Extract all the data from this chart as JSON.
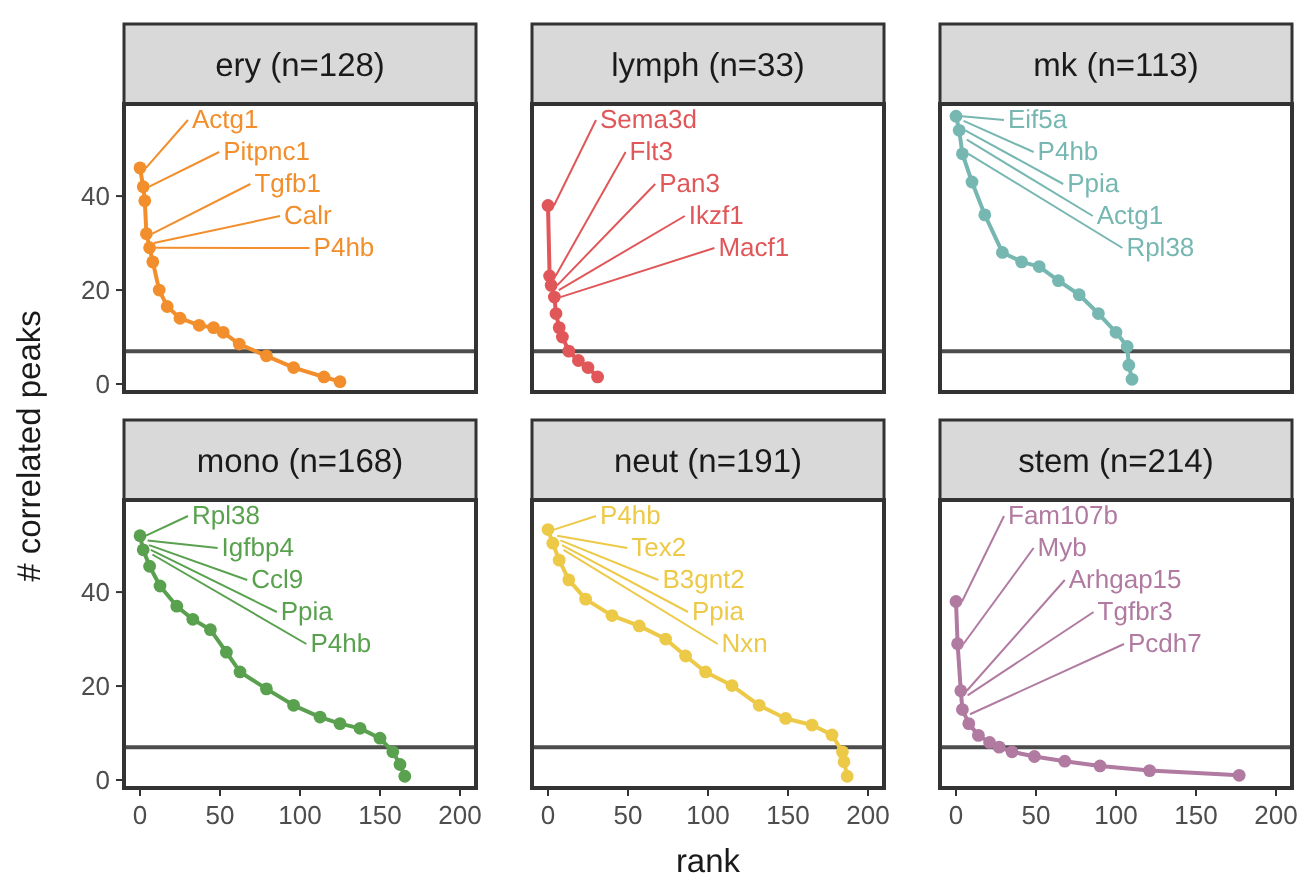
{
  "chart_data": [
    {
      "type": "line",
      "title": "ery (n=128)",
      "marker": "circle",
      "tick_labels": "y",
      "ylabel": "# correlated peaks",
      "xlim": [
        -10,
        210
      ],
      "ylim": [
        -1.7,
        59.6
      ],
      "yticks": [
        0,
        20,
        40
      ],
      "ref_lines": [
        {
          "axis": "y",
          "value": 7,
          "color": "#4d4d4d"
        }
      ],
      "series": [
        {
          "color": "#f28e2b",
          "x": [
            0,
            2,
            3,
            4,
            6,
            8,
            12,
            17,
            25,
            37,
            46,
            52,
            62,
            79,
            96,
            115,
            125
          ],
          "values": [
            46,
            42,
            39,
            32,
            29,
            26,
            20,
            16.5,
            14,
            12.5,
            12,
            11,
            8.5,
            6,
            3.5,
            1.5,
            0.5
          ]
        }
      ],
      "annotations": [
        {
          "text": "Actg1",
          "x": 0,
          "y": 46
        },
        {
          "text": "Pitpnc1",
          "x": 2,
          "y": 42
        },
        {
          "text": "Tgfb1",
          "x": 4,
          "y": 32
        },
        {
          "text": "Calr",
          "x": 5,
          "y": 30
        },
        {
          "text": "P4hb",
          "x": 6,
          "y": 29
        }
      ]
    },
    {
      "type": "line",
      "title": "lymph (n=33)",
      "marker": "circle",
      "tick_labels": false,
      "xlim": [
        -10,
        210
      ],
      "ylim": [
        -1.7,
        59.6
      ],
      "ref_lines": [
        {
          "axis": "y",
          "value": 7,
          "color": "#4d4d4d"
        }
      ],
      "series": [
        {
          "color": "#e15759",
          "x": [
            0,
            1,
            2,
            4,
            5,
            7,
            9,
            13,
            19,
            25,
            31
          ],
          "values": [
            38,
            23,
            21,
            18.5,
            15,
            12,
            10,
            7,
            5,
            3.5,
            1.5
          ]
        }
      ],
      "annotations": [
        {
          "text": "Sema3d",
          "x": 0,
          "y": 38
        },
        {
          "text": "Flt3",
          "x": 1,
          "y": 23
        },
        {
          "text": "Pan3",
          "x": 2,
          "y": 21
        },
        {
          "text": "Ikzf1",
          "x": 3,
          "y": 20
        },
        {
          "text": "Macf1",
          "x": 4,
          "y": 18.5
        }
      ]
    },
    {
      "type": "line",
      "title": "mk (n=113)",
      "marker": "circle",
      "tick_labels": false,
      "xlim": [
        -10,
        210
      ],
      "ylim": [
        -1.7,
        59.6
      ],
      "ref_lines": [
        {
          "axis": "y",
          "value": 7,
          "color": "#4d4d4d"
        }
      ],
      "series": [
        {
          "color": "#76b7b2",
          "x": [
            0,
            2,
            4,
            10,
            18,
            29,
            41,
            52,
            64,
            77,
            89,
            100,
            107,
            108,
            110
          ],
          "values": [
            57,
            54,
            49,
            43,
            36,
            28,
            26,
            25,
            22,
            19,
            15,
            11,
            8,
            4,
            1
          ]
        }
      ],
      "annotations": [
        {
          "text": "Eif5a",
          "x": 0,
          "y": 57
        },
        {
          "text": "P4hb",
          "x": 1,
          "y": 56
        },
        {
          "text": "Ppia",
          "x": 2,
          "y": 54
        },
        {
          "text": "Actg1",
          "x": 3,
          "y": 52
        },
        {
          "text": "Rpl38",
          "x": 4,
          "y": 49
        }
      ]
    },
    {
      "type": "line",
      "title": "mono (n=168)",
      "marker": "circle",
      "xlim": [
        -10,
        210
      ],
      "xticks": [
        0,
        50,
        100,
        150,
        200
      ],
      "ylim": [
        -1.7,
        59.6
      ],
      "yticks": [
        0,
        20,
        40
      ],
      "ref_lines": [
        {
          "axis": "y",
          "value": 7,
          "color": "#4d4d4d"
        }
      ],
      "series": [
        {
          "color": "#59a14f",
          "x": [
            0,
            2,
            6,
            12.5,
            23,
            33,
            44,
            54,
            62.5,
            79,
            96,
            112.5,
            125,
            137.5,
            150,
            158,
            162.5,
            165.5
          ],
          "values": [
            52,
            49,
            45.5,
            41.3,
            37,
            34.2,
            32,
            27.2,
            23,
            19.4,
            15.9,
            13.4,
            12,
            11,
            8.9,
            6,
            3.3,
            0.8
          ]
        }
      ],
      "annotations": [
        {
          "text": "Rpl38",
          "x": 0,
          "y": 52
        },
        {
          "text": "Igfbp4",
          "x": 1,
          "y": 51
        },
        {
          "text": "Ccl9",
          "x": 2,
          "y": 50
        },
        {
          "text": "Ppia",
          "x": 3,
          "y": 49
        },
        {
          "text": "P4hb",
          "x": 4,
          "y": 48
        }
      ]
    },
    {
      "type": "line",
      "title": "neut (n=191)",
      "marker": "circle",
      "tick_labels": "x",
      "xlabel": "rank",
      "xlim": [
        -10,
        210
      ],
      "xticks": [
        0,
        50,
        100,
        150,
        200
      ],
      "ylim": [
        -1.7,
        59.6
      ],
      "ref_lines": [
        {
          "axis": "y",
          "value": 7,
          "color": "#4d4d4d"
        }
      ],
      "series": [
        {
          "color": "#edc948",
          "x": [
            0,
            3,
            7,
            13,
            23.5,
            40,
            57,
            73.5,
            86,
            98.5,
            115,
            132,
            148.5,
            165,
            177.5,
            184,
            185,
            187
          ],
          "values": [
            53.3,
            50.4,
            46.8,
            42.6,
            38.5,
            35,
            32.8,
            30,
            26.4,
            23,
            20.1,
            15.9,
            13.1,
            11.7,
            9.6,
            6,
            3.9,
            0.8
          ]
        }
      ],
      "annotations": [
        {
          "text": "P4hb",
          "x": 0,
          "y": 53.3
        },
        {
          "text": "Tex2",
          "x": 2,
          "y": 52
        },
        {
          "text": "B3gnt2",
          "x": 4,
          "y": 51
        },
        {
          "text": "Ppia",
          "x": 5,
          "y": 50
        },
        {
          "text": "Nxn",
          "x": 6,
          "y": 49
        }
      ]
    },
    {
      "type": "line",
      "title": "stem (n=214)",
      "marker": "circle",
      "tick_labels": "x",
      "xlim": [
        -10,
        210
      ],
      "xticks": [
        0,
        50,
        100,
        150,
        200
      ],
      "ylim": [
        -1.7,
        59.6
      ],
      "ref_lines": [
        {
          "axis": "y",
          "value": 7,
          "color": "#4d4d4d"
        }
      ],
      "series": [
        {
          "color": "#b07aa1",
          "x": [
            0,
            1,
            3,
            4,
            8,
            14,
            21,
            27,
            35,
            49,
            68,
            90,
            121,
            177
          ],
          "values": [
            38,
            29,
            19,
            15,
            12,
            9.5,
            8,
            7,
            6,
            5,
            4,
            3,
            2,
            1
          ]
        }
      ],
      "annotations": [
        {
          "text": "Fam107b",
          "x": 0,
          "y": 38
        },
        {
          "text": "Myb",
          "x": 1,
          "y": 29
        },
        {
          "text": "Arhgap15",
          "x": 3,
          "y": 19
        },
        {
          "text": "Tgfbr3",
          "x": 3.5,
          "y": 18
        },
        {
          "text": "Pcdh7",
          "x": 5,
          "y": 14
        }
      ]
    }
  ]
}
